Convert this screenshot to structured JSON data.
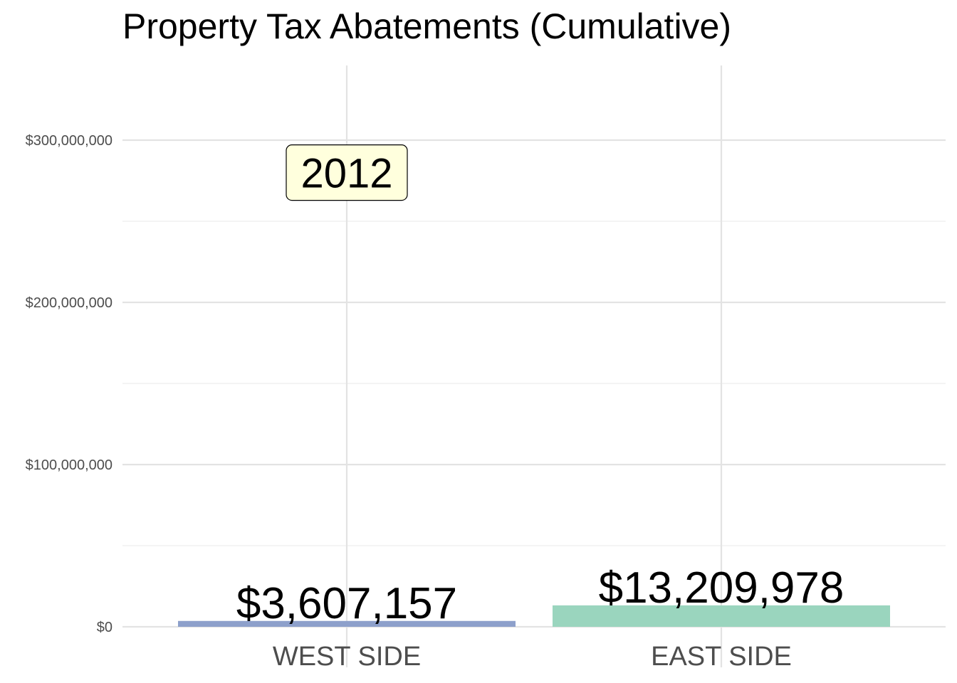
{
  "chart_data": {
    "type": "bar",
    "title": "Property Tax Abatements (Cumulative)",
    "xlabel": "",
    "ylabel": "",
    "categories": [
      "WEST SIDE",
      "EAST SIDE"
    ],
    "values": [
      3607157,
      13209978
    ],
    "value_labels": [
      "$3,607,157",
      "$13,209,978"
    ],
    "colors": [
      "#8da0cb",
      "#9ad5be"
    ],
    "ylim": [
      0,
      340000000
    ],
    "y_ticks": [
      0,
      100000000,
      200000000,
      300000000
    ],
    "y_tick_labels": [
      "$0",
      "$100,000,000",
      "$200,000,000",
      "$300,000,000"
    ],
    "y_minor_ticks": [
      50000000,
      150000000,
      250000000
    ],
    "grid": true,
    "legend": "none",
    "annotation": {
      "text": "2012",
      "category": "WEST SIDE",
      "y": 280000000,
      "fill": "#ffffdd"
    }
  }
}
